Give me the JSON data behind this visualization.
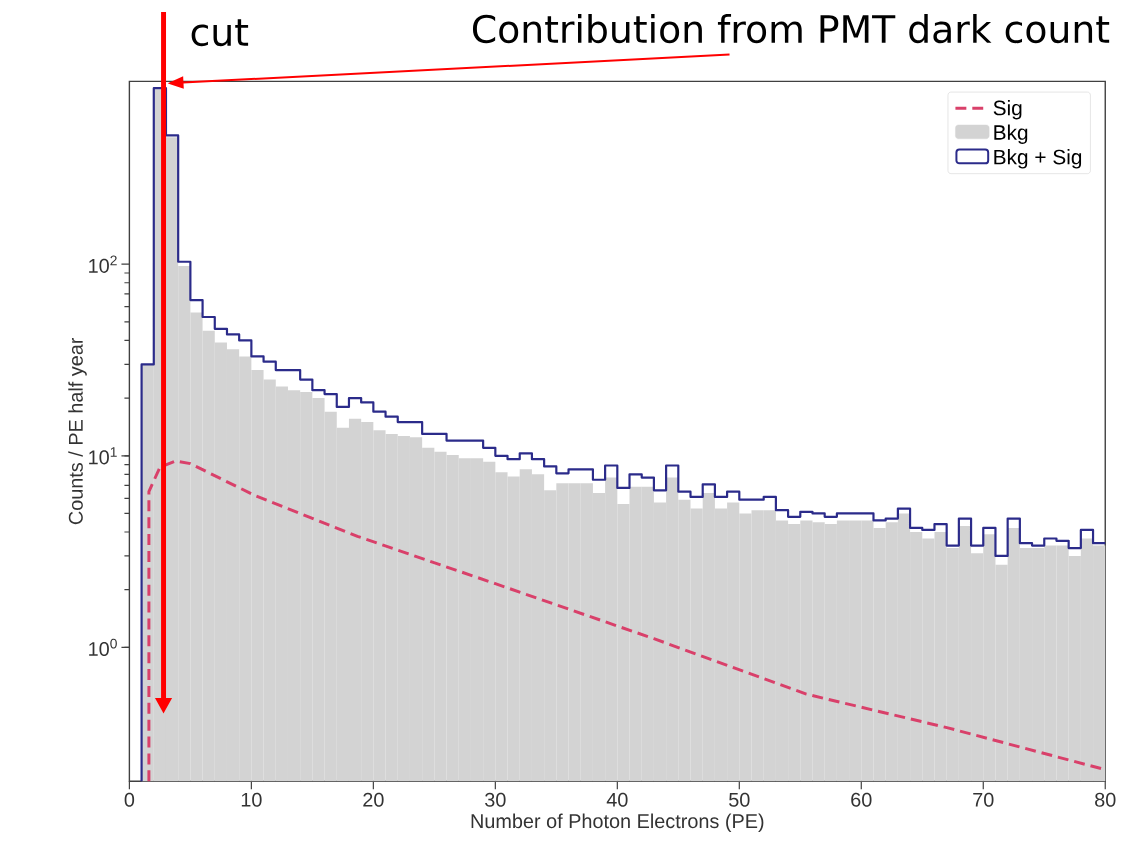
{
  "chart_data": {
    "type": "histogram",
    "xlabel": "Number of Photon Electrons (PE)",
    "ylabel": "Counts / PE half year",
    "bins": [
      1,
      2,
      3,
      4,
      5,
      6,
      7,
      8,
      9,
      10,
      11,
      12,
      13,
      14,
      15,
      16,
      17,
      18,
      19,
      20,
      21,
      22,
      23,
      24,
      25,
      26,
      27,
      28,
      29,
      30,
      31,
      32,
      33,
      34,
      35,
      36,
      37,
      38,
      39,
      40,
      41,
      42,
      43,
      44,
      45,
      46,
      47,
      48,
      49,
      50,
      51,
      52,
      53,
      54,
      55,
      56,
      57,
      58,
      59,
      60,
      61,
      62,
      63,
      64,
      65,
      66,
      67,
      68,
      69,
      70,
      71,
      72,
      73,
      74,
      75,
      76,
      77,
      78,
      79,
      80
    ],
    "series": [
      {
        "name": "Sig",
        "type": "line",
        "color": "#d9406a",
        "line_style": "dashed",
        "x": [
          1.6,
          1.6,
          2.5,
          3.8,
          5,
          10.3,
          18.7,
          30,
          43,
          55.5,
          67.1,
          80
        ],
        "values": [
          0.2,
          6.5,
          8.7,
          9.4,
          9.1,
          6.2,
          3.8,
          2.15,
          1.11,
          0.57,
          0.38,
          0.23
        ]
      },
      {
        "name": "Bkg",
        "type": "histogram",
        "color": "#d3d3d3",
        "values": [
          30,
          820,
          460,
          98,
          56,
          45,
          39,
          36,
          33,
          28,
          25,
          23,
          22,
          21.5,
          20,
          17,
          14,
          15.6,
          15,
          13.6,
          13,
          12.7,
          12.5,
          11,
          10.5,
          10.1,
          9.7,
          9.7,
          9.3,
          8.2,
          7.8,
          8.5,
          8.0,
          6.6,
          7.2,
          7.2,
          7.2,
          6.4,
          7.7,
          5.6,
          6.9,
          6.9,
          5.7,
          7.7,
          5.9,
          5.3,
          6.4,
          5.3,
          5.7,
          5.0,
          5.2,
          5.2,
          4.6,
          4.4,
          4.6,
          4.5,
          4.4,
          4.6,
          4.6,
          4.6,
          4.2,
          4.5,
          5.0,
          4.0,
          3.7,
          4.0,
          3.3,
          4.3,
          3.1,
          3.9,
          2.7,
          4.2,
          3.3,
          3.3,
          3.4,
          3.4,
          3.0,
          3.7,
          3.4
        ]
      },
      {
        "name": "Bkg + Sig",
        "type": "histogram",
        "line_style": "solid",
        "color": "#2b2b8a",
        "values": [
          30,
          830,
          470,
          103,
          65,
          53,
          46,
          43,
          40,
          33,
          31,
          28,
          28,
          25,
          22,
          21,
          18,
          20,
          19,
          17,
          16,
          15,
          15,
          13,
          13,
          12,
          12,
          12,
          11,
          10,
          9.6,
          10.3,
          9.6,
          8.8,
          8.1,
          8.5,
          8.5,
          7.5,
          8.9,
          6.8,
          8.0,
          7.7,
          6.6,
          8.9,
          6.5,
          6.1,
          7.1,
          6.1,
          6.5,
          5.9,
          5.9,
          6.1,
          5.2,
          4.8,
          5.1,
          5.0,
          4.8,
          5.0,
          5.0,
          5.0,
          4.6,
          4.7,
          5.3,
          4.2,
          4.1,
          4.4,
          3.4,
          4.7,
          3.4,
          4.2,
          3.0,
          4.7,
          3.5,
          3.4,
          3.7,
          3.6,
          3.3,
          4.1,
          3.5
        ]
      }
    ],
    "xlim": [
      0,
      80
    ],
    "ylim": [
      0.2,
      900
    ],
    "xticks": [
      0,
      10,
      20,
      30,
      40,
      50,
      60,
      70,
      80
    ],
    "yticks": [
      {
        "value": 1,
        "label": "10$^{0}$"
      },
      {
        "value": 10,
        "label": "10$^{1}$"
      },
      {
        "value": 100,
        "label": "10$^{2}$"
      }
    ],
    "log": "y",
    "legend": "top right",
    "ref_lines": [
      {
        "axis": "x",
        "value": 2.8,
        "label": "cut",
        "color": "#ff0000"
      }
    ],
    "annotations": [
      "Contribution from PMT dark count"
    ]
  }
}
